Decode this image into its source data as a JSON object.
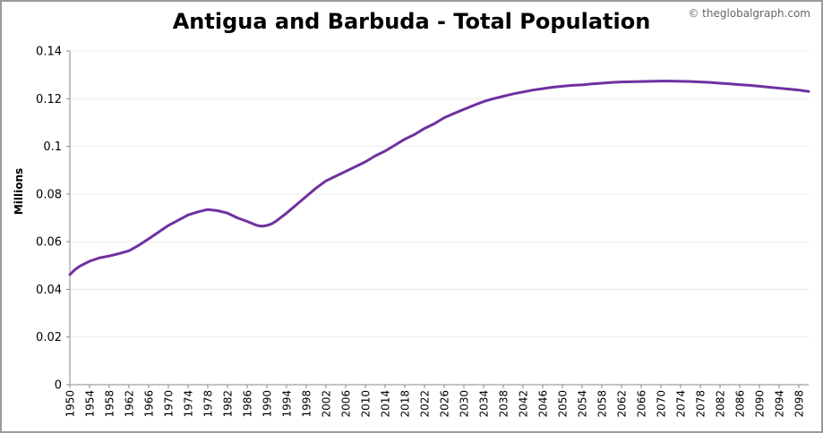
{
  "chart_data": {
    "type": "line",
    "title": "Antigua and Barbuda - Total Population",
    "credit": "© theglobalgraph.com",
    "ylabel": "Millions",
    "xlabel": "",
    "xlim": [
      1950,
      2100
    ],
    "ylim": [
      0,
      0.14
    ],
    "y_ticks": [
      "0",
      "0.02",
      "0.04",
      "0.06",
      "0.08",
      "0.1",
      "0.12",
      "0.14"
    ],
    "x_ticks": [
      "1950",
      "1954",
      "1958",
      "1962",
      "1966",
      "1970",
      "1974",
      "1978",
      "1982",
      "1986",
      "1990",
      "1994",
      "1998",
      "2002",
      "2006",
      "2010",
      "2014",
      "2018",
      "2022",
      "2026",
      "2030",
      "2034",
      "2038",
      "2042",
      "2046",
      "2050",
      "2054",
      "2058",
      "2062",
      "2066",
      "2070",
      "2074",
      "2078",
      "2082",
      "2086",
      "2090",
      "2094",
      "2098"
    ],
    "grid": "horizontal",
    "series": [
      {
        "color": "#7030a0",
        "x": [
          1950,
          1951,
          1952,
          1954,
          1956,
          1958,
          1960,
          1962,
          1964,
          1966,
          1968,
          1970,
          1972,
          1974,
          1976,
          1978,
          1980,
          1982,
          1984,
          1986,
          1988,
          1989,
          1990,
          1991,
          1992,
          1994,
          1996,
          1998,
          2000,
          2002,
          2004,
          2006,
          2008,
          2010,
          2012,
          2014,
          2016,
          2018,
          2020,
          2022,
          2024,
          2026,
          2028,
          2030,
          2032,
          2034,
          2036,
          2038,
          2040,
          2042,
          2044,
          2046,
          2048,
          2050,
          2052,
          2054,
          2056,
          2058,
          2060,
          2062,
          2064,
          2066,
          2068,
          2070,
          2072,
          2074,
          2076,
          2078,
          2080,
          2082,
          2084,
          2086,
          2088,
          2090,
          2092,
          2094,
          2096,
          2098,
          2100
        ],
        "y": [
          0.0462,
          0.0482,
          0.0497,
          0.0518,
          0.0532,
          0.054,
          0.055,
          0.0562,
          0.0585,
          0.0612,
          0.064,
          0.0668,
          0.069,
          0.0712,
          0.0725,
          0.0735,
          0.073,
          0.072,
          0.07,
          0.0685,
          0.0668,
          0.0665,
          0.0668,
          0.0675,
          0.0688,
          0.072,
          0.0755,
          0.079,
          0.0825,
          0.0855,
          0.0875,
          0.0895,
          0.0915,
          0.0935,
          0.096,
          0.098,
          0.1005,
          0.103,
          0.105,
          0.1075,
          0.1095,
          0.112,
          0.1138,
          0.1155,
          0.1172,
          0.1188,
          0.12,
          0.121,
          0.122,
          0.1228,
          0.1236,
          0.1242,
          0.1248,
          0.1252,
          0.1256,
          0.1258,
          0.1262,
          0.1265,
          0.1268,
          0.127,
          0.1271,
          0.1272,
          0.1273,
          0.1274,
          0.1274,
          0.1273,
          0.1272,
          0.127,
          0.1268,
          0.1265,
          0.1262,
          0.1259,
          0.1256,
          0.1252,
          0.1248,
          0.1244,
          0.124,
          0.1236,
          0.123
        ]
      }
    ]
  }
}
